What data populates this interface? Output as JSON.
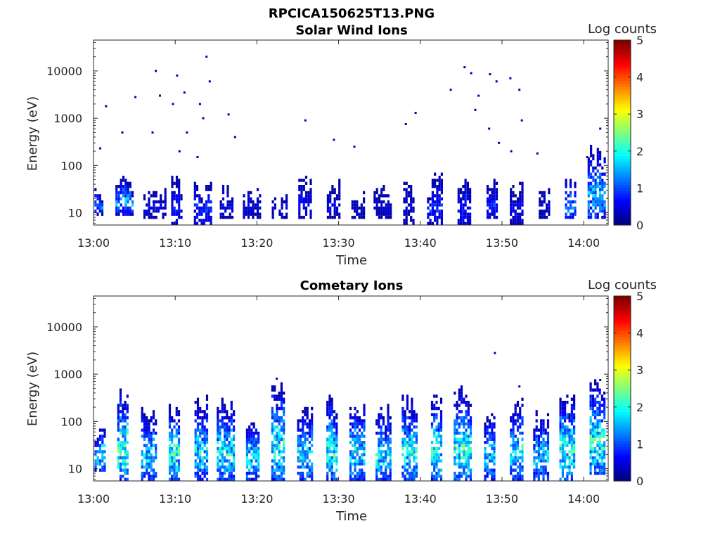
{
  "figure": {
    "title": "RPCICA150625T13.PNG"
  },
  "chart_data": [
    {
      "type": "heatmap",
      "title": "Solar Wind Ions",
      "xlabel": "Time",
      "ylabel": "Energy (eV)",
      "x_range": [
        "13:00",
        "14:03"
      ],
      "x_ticks": [
        "13:00",
        "13:10",
        "13:20",
        "13:30",
        "13:40",
        "13:50",
        "14:00"
      ],
      "y_scale": "log",
      "y_range": [
        5.5,
        45000
      ],
      "y_ticks": [
        "10",
        "100",
        "1000",
        "10000"
      ],
      "colorbar": {
        "label": "Log counts",
        "min": 0,
        "max": 5,
        "ticks": [
          "0",
          "1",
          "2",
          "3",
          "4",
          "5"
        ],
        "colormap": "jet"
      },
      "bursts": [
        {
          "t": 0.1,
          "emin": 10,
          "emax": 30,
          "peak": 1.4
        },
        {
          "t": 3.8,
          "emin": 10,
          "emax": 60,
          "peak": 1.7
        },
        {
          "t": 6.8,
          "emin": 8,
          "emax": 25,
          "peak": 0.6
        },
        {
          "t": 8.1,
          "emin": 8,
          "emax": 35,
          "peak": 0.6
        },
        {
          "t": 10.2,
          "emin": 6,
          "emax": 50,
          "peak": 0.8
        },
        {
          "t": 13.4,
          "emin": 6,
          "emax": 40,
          "peak": 1.0
        },
        {
          "t": 16.3,
          "emin": 8,
          "emax": 30,
          "peak": 0.7
        },
        {
          "t": 19.4,
          "emin": 8,
          "emax": 25,
          "peak": 0.5
        },
        {
          "t": 22.8,
          "emin": 8,
          "emax": 25,
          "peak": 0.5
        },
        {
          "t": 25.9,
          "emin": 8,
          "emax": 50,
          "peak": 0.7
        },
        {
          "t": 29.4,
          "emin": 8,
          "emax": 40,
          "peak": 0.6
        },
        {
          "t": 32.4,
          "emin": 8,
          "emax": 30,
          "peak": 0.5
        },
        {
          "t": 35.4,
          "emin": 8,
          "emax": 30,
          "peak": 0.5
        },
        {
          "t": 38.6,
          "emin": 6,
          "emax": 40,
          "peak": 0.5
        },
        {
          "t": 41.8,
          "emin": 6,
          "emax": 60,
          "peak": 0.9
        },
        {
          "t": 45.4,
          "emin": 6,
          "emax": 60,
          "peak": 0.8
        },
        {
          "t": 48.8,
          "emin": 8,
          "emax": 50,
          "peak": 1.0
        },
        {
          "t": 51.8,
          "emin": 6,
          "emax": 40,
          "peak": 0.6
        },
        {
          "t": 55.2,
          "emin": 8,
          "emax": 30,
          "peak": 0.5
        },
        {
          "t": 58.4,
          "emin": 8,
          "emax": 40,
          "peak": 1.6
        },
        {
          "t": 61.6,
          "emin": 8,
          "emax": 200,
          "peak": 1.8
        }
      ],
      "scatter_points": [
        [
          7.5,
          10000
        ],
        [
          8.0,
          3000
        ],
        [
          9.6,
          2000
        ],
        [
          10.1,
          8000
        ],
        [
          11.3,
          500
        ],
        [
          12.9,
          2000
        ],
        [
          13.7,
          20000
        ],
        [
          14.1,
          6000
        ],
        [
          13.3,
          1000
        ],
        [
          16.4,
          1200
        ],
        [
          17.2,
          400
        ],
        [
          10.4,
          200
        ],
        [
          12.6,
          150
        ],
        [
          1.4,
          1800
        ],
        [
          3.4,
          500
        ],
        [
          5.0,
          2800
        ],
        [
          25.8,
          900
        ],
        [
          29.3,
          350
        ],
        [
          31.8,
          250
        ],
        [
          38.1,
          750
        ],
        [
          39.3,
          1300
        ],
        [
          43.6,
          4000
        ],
        [
          45.3,
          12000
        ],
        [
          46.1,
          9000
        ],
        [
          47.0,
          3000
        ],
        [
          48.4,
          8500
        ],
        [
          49.2,
          6000
        ],
        [
          50.9,
          7000
        ],
        [
          52.0,
          4000
        ],
        [
          46.6,
          1500
        ],
        [
          48.3,
          600
        ],
        [
          49.5,
          300
        ],
        [
          51.0,
          200
        ],
        [
          52.3,
          900
        ],
        [
          54.2,
          180
        ],
        [
          60.3,
          150
        ],
        [
          61.9,
          600
        ],
        [
          0.7,
          230
        ],
        [
          7.1,
          500
        ],
        [
          11.0,
          3500
        ]
      ]
    },
    {
      "type": "heatmap",
      "title": "Cometary Ions",
      "xlabel": "Time",
      "ylabel": "Energy (eV)",
      "x_range": [
        "13:00",
        "14:03"
      ],
      "x_ticks": [
        "13:00",
        "13:10",
        "13:20",
        "13:30",
        "13:40",
        "13:50",
        "14:00"
      ],
      "y_scale": "log",
      "y_range": [
        5.5,
        45000
      ],
      "y_ticks": [
        "10",
        "100",
        "1000",
        "10000"
      ],
      "colorbar": {
        "label": "Log counts",
        "min": 0,
        "max": 5,
        "ticks": [
          "0",
          "1",
          "2",
          "3",
          "4",
          "5"
        ],
        "colormap": "jet"
      },
      "bursts": [
        {
          "t": 0.4,
          "emin": 10,
          "emax": 60,
          "peak": 2.2
        },
        {
          "t": 3.6,
          "emin": 6,
          "emax": 400,
          "peak": 2.6
        },
        {
          "t": 6.8,
          "emin": 6,
          "emax": 150,
          "peak": 1.9
        },
        {
          "t": 9.9,
          "emin": 6,
          "emax": 200,
          "peak": 2.4
        },
        {
          "t": 13.2,
          "emin": 6,
          "emax": 300,
          "peak": 2.0
        },
        {
          "t": 16.2,
          "emin": 6,
          "emax": 250,
          "peak": 2.1
        },
        {
          "t": 19.5,
          "emin": 6,
          "emax": 150,
          "peak": 2.0
        },
        {
          "t": 22.6,
          "emin": 6,
          "emax": 700,
          "peak": 2.3
        },
        {
          "t": 25.9,
          "emin": 6,
          "emax": 200,
          "peak": 2.0
        },
        {
          "t": 29.2,
          "emin": 6,
          "emax": 300,
          "peak": 2.2
        },
        {
          "t": 32.3,
          "emin": 6,
          "emax": 250,
          "peak": 2.1
        },
        {
          "t": 35.5,
          "emin": 6,
          "emax": 200,
          "peak": 2.0
        },
        {
          "t": 38.7,
          "emin": 6,
          "emax": 300,
          "peak": 2.1
        },
        {
          "t": 42.0,
          "emin": 6,
          "emax": 300,
          "peak": 2.2
        },
        {
          "t": 45.2,
          "emin": 6,
          "emax": 500,
          "peak": 2.3
        },
        {
          "t": 48.5,
          "emin": 6,
          "emax": 150,
          "peak": 1.9
        },
        {
          "t": 51.8,
          "emin": 6,
          "emax": 300,
          "peak": 2.0
        },
        {
          "t": 54.8,
          "emin": 6,
          "emax": 150,
          "peak": 1.9
        },
        {
          "t": 58.0,
          "emin": 6,
          "emax": 300,
          "peak": 2.4
        },
        {
          "t": 61.7,
          "emin": 8,
          "emax": 700,
          "peak": 2.3
        }
      ],
      "scatter_points": [
        [
          49.0,
          2800
        ],
        [
          52.0,
          550
        ],
        [
          61.9,
          750
        ],
        [
          22.3,
          800
        ]
      ]
    }
  ]
}
